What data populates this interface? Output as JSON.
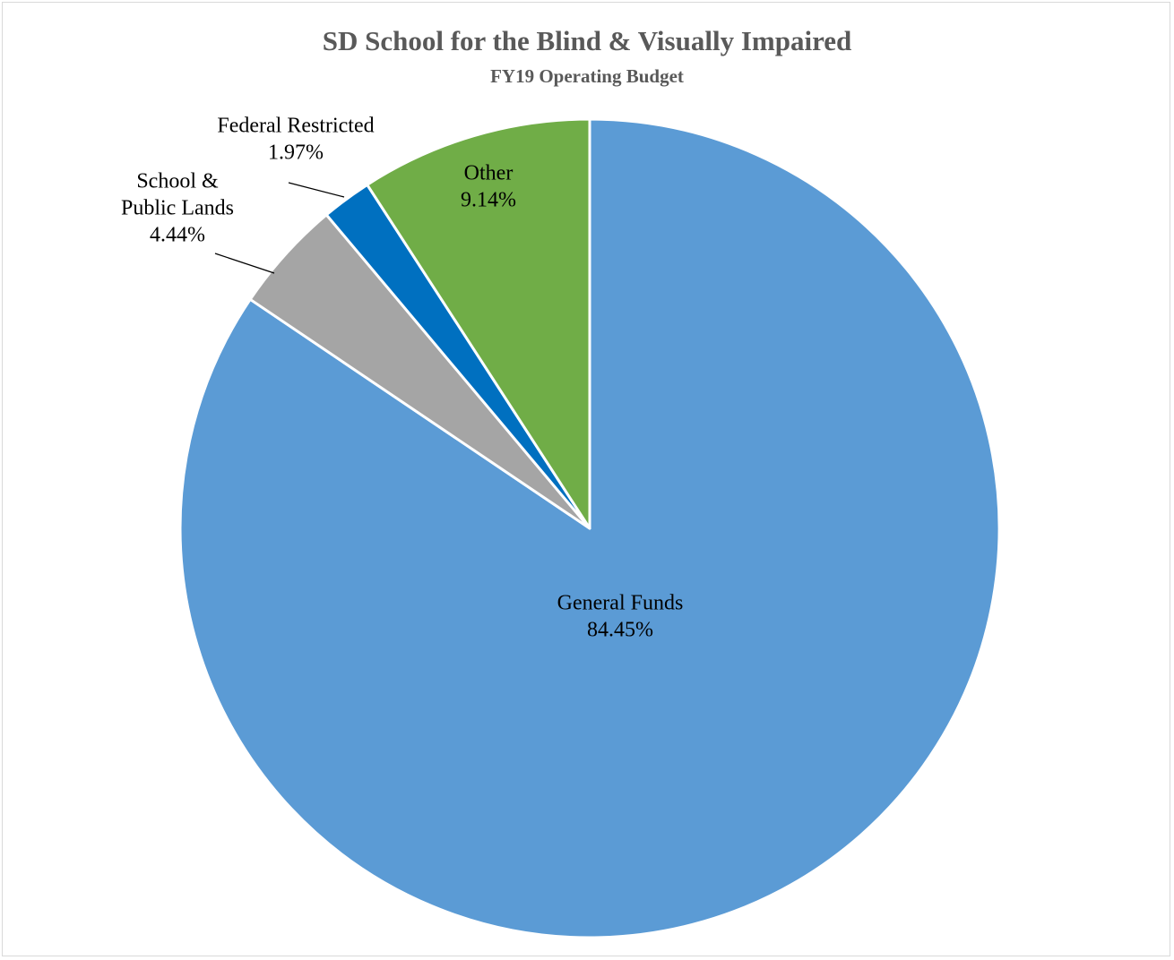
{
  "chart_data": {
    "type": "pie",
    "title": "SD School for the Blind & Visually Impaired",
    "subtitle": "FY19 Operating Budget",
    "slices": [
      {
        "label_lines": [
          "General Funds"
        ],
        "value_label": "84.45%",
        "value": 84.45,
        "color": "#5b9bd5"
      },
      {
        "label_lines": [
          "School &",
          "Public Lands"
        ],
        "value_label": "4.44%",
        "value": 4.44,
        "color": "#a5a5a5"
      },
      {
        "label_lines": [
          "Federal Restricted"
        ],
        "value_label": "1.97%",
        "value": 1.97,
        "color": "#0070c0"
      },
      {
        "label_lines": [
          "Other"
        ],
        "value_label": "9.14%",
        "value": 9.14,
        "color": "#70ad47"
      }
    ],
    "legend": "none"
  }
}
